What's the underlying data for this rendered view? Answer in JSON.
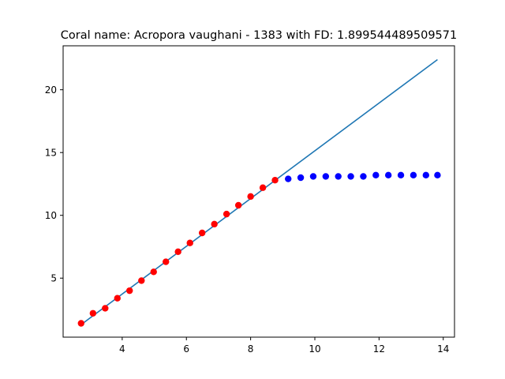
{
  "chart_data": {
    "type": "scatter",
    "title": "Coral name: Acropora vaughani - 1383 with FD: 1.899544489509571",
    "xlabel": "",
    "ylabel": "",
    "xlim": [
      2.16,
      14.35
    ],
    "ylim": [
      0.3,
      23.5
    ],
    "xticks": [
      4,
      6,
      8,
      10,
      12,
      14
    ],
    "yticks": [
      5,
      10,
      15,
      20
    ],
    "grid": false,
    "series": [
      {
        "kind": "scatter",
        "color": "#ff0000",
        "x": [
          2.72,
          3.09,
          3.47,
          3.85,
          4.23,
          4.6,
          4.98,
          5.36,
          5.74,
          6.11,
          6.49,
          6.87,
          7.25,
          7.62,
          8.0,
          8.38,
          8.76
        ],
        "y": [
          1.4,
          2.2,
          2.6,
          3.4,
          4.0,
          4.8,
          5.5,
          6.3,
          7.1,
          7.8,
          8.6,
          9.3,
          10.1,
          10.8,
          11.5,
          12.2,
          12.8
        ]
      },
      {
        "kind": "scatter",
        "color": "#0000ff",
        "x": [
          9.17,
          9.56,
          9.95,
          10.34,
          10.73,
          11.12,
          11.51,
          11.9,
          12.29,
          12.68,
          13.07,
          13.46,
          13.82
        ],
        "y": [
          12.9,
          13.0,
          13.1,
          13.1,
          13.1,
          13.1,
          13.1,
          13.2,
          13.2,
          13.2,
          13.2,
          13.2,
          13.2
        ]
      },
      {
        "kind": "line",
        "color": "#1f77b4",
        "x": [
          2.72,
          13.82
        ],
        "y": [
          1.3,
          22.4
        ]
      }
    ]
  }
}
